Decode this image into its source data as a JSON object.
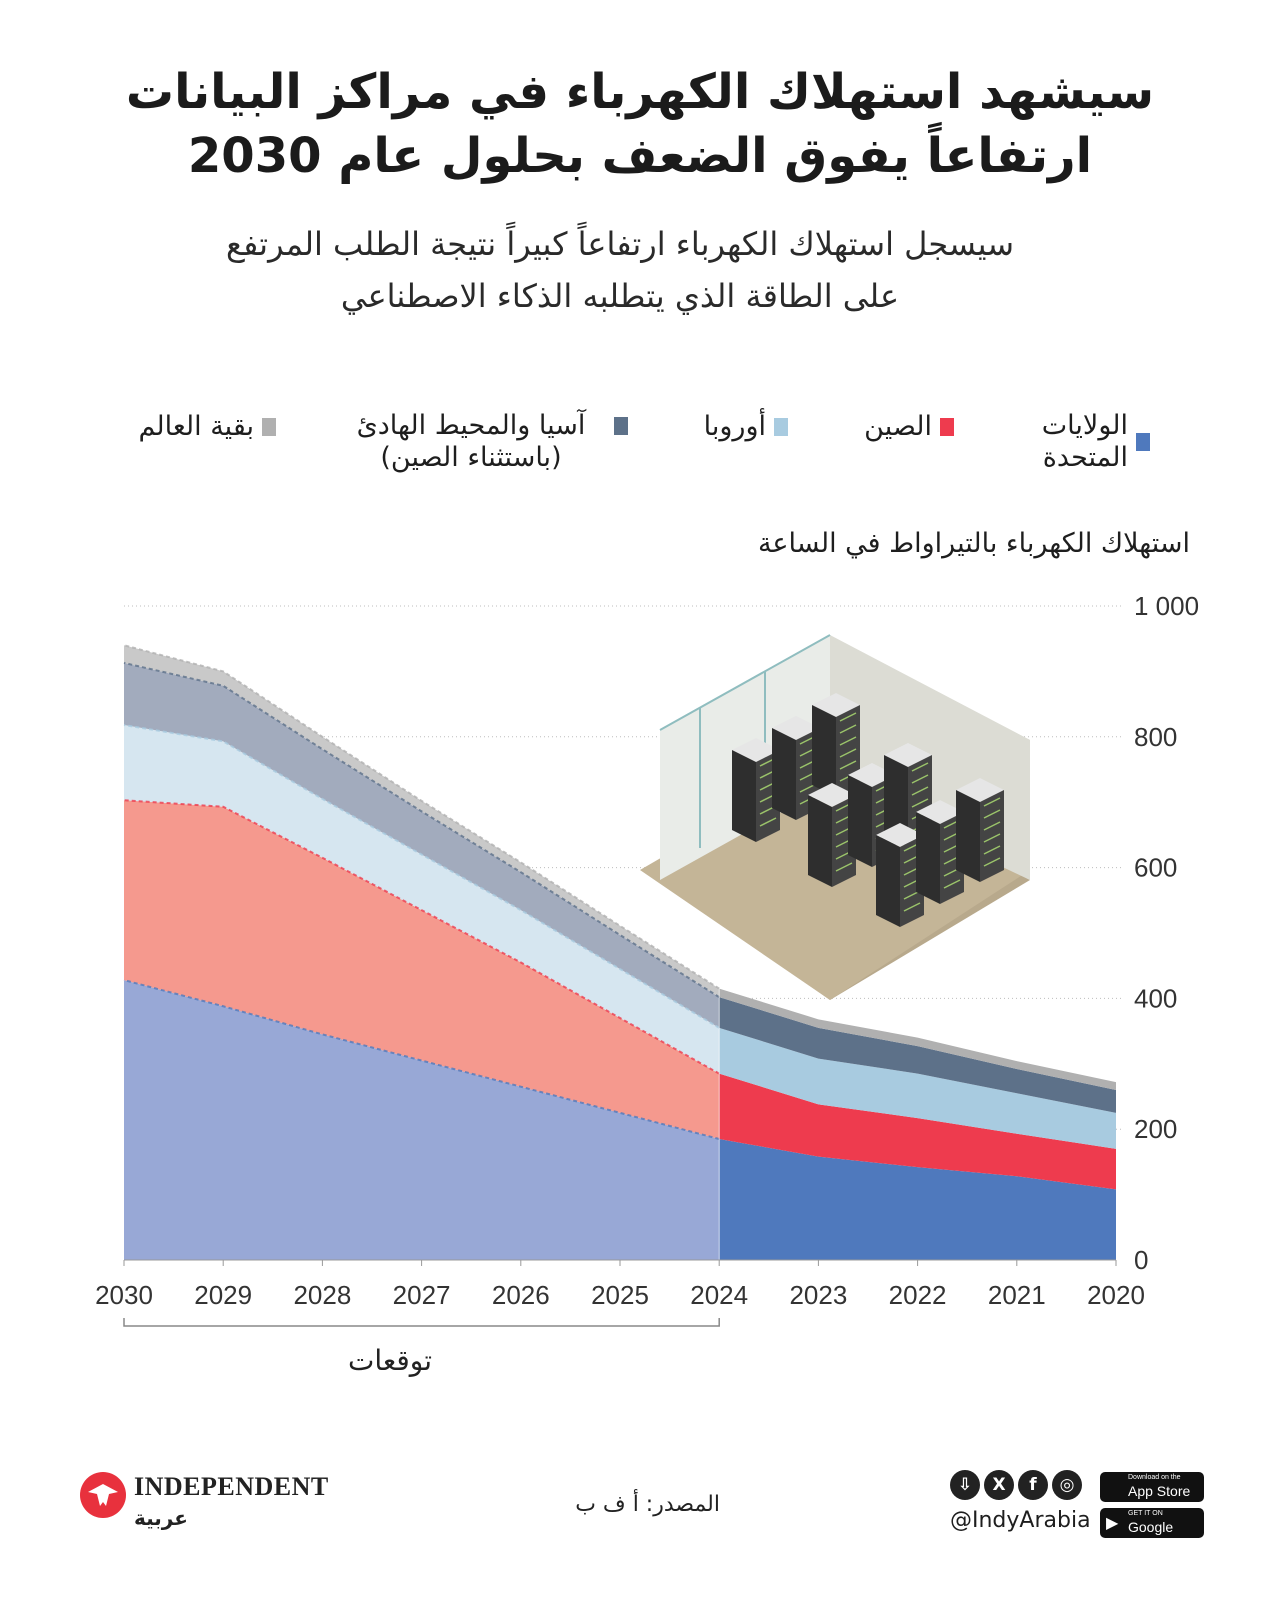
{
  "title": "سيشهد استهلاك الكهرباء في مراكز البيانات ارتفاعاً يفوق الضعف بحلول عام 2030",
  "subtitle": "سيسجل استهلاك الكهرباء ارتفاعاً كبيراً نتيجة الطلب المرتفع على الطاقة الذي يتطلبه الذكاء الاصطناعي",
  "legend": {
    "items": [
      {
        "label": "الولايات المتحدة",
        "color": "#4f79bd"
      },
      {
        "label": "الصين",
        "color": "#ee3b4e"
      },
      {
        "label": "أوروبا",
        "color": "#a8cbe0"
      },
      {
        "label": "آسيا والمحيط الهادئ (باستثناء الصين)",
        "color": "#5d7189"
      },
      {
        "label": "بقية العالم",
        "color": "#b0b0b0"
      }
    ]
  },
  "chart_data": {
    "type": "area",
    "stacked": true,
    "title": "سيشهد استهلاك الكهرباء في مراكز البيانات ارتفاعاً يفوق الضعف بحلول عام 2030",
    "ylabel": "استهلاك الكهرباء بالتيراواط في الساعة",
    "xlabel": "",
    "x_reversed": true,
    "x": [
      2020,
      2021,
      2022,
      2023,
      2024,
      2025,
      2026,
      2027,
      2028,
      2029,
      2030
    ],
    "ylim": [
      0,
      1000
    ],
    "yticks": [
      0,
      200,
      400,
      600,
      800,
      1000
    ],
    "ytick_labels": [
      "0",
      "200",
      "400",
      "600",
      "800",
      "1 000"
    ],
    "grid": true,
    "forecast_from": 2024,
    "forecast_label": "توقعات",
    "series": [
      {
        "name": "الولايات المتحدة",
        "values": [
          108,
          128,
          142,
          158,
          185,
          225,
          265,
          305,
          345,
          388,
          428
        ]
      },
      {
        "name": "الصين",
        "values": [
          62,
          65,
          75,
          80,
          100,
          145,
          190,
          230,
          270,
          305,
          275
        ]
      },
      {
        "name": "أوروبا",
        "values": [
          55,
          62,
          68,
          70,
          70,
          75,
          80,
          85,
          90,
          100,
          115
        ]
      },
      {
        "name": "آسيا والمحيط الهادئ (باستثناء الصين)",
        "values": [
          35,
          37,
          42,
          47,
          47,
          52,
          58,
          66,
          76,
          85,
          95
        ]
      },
      {
        "name": "بقية العالم",
        "values": [
          12,
          12,
          13,
          13,
          13,
          14,
          15,
          16,
          19,
          22,
          27
        ]
      }
    ]
  },
  "footer": {
    "brand_name": "INDEPENDENT",
    "brand_sub": "عربية",
    "source": "المصدر: أ ف ب",
    "handle": "@IndyArabia",
    "social_icons": [
      "download-icon",
      "x-icon",
      "facebook-icon",
      "instagram-icon"
    ],
    "app_store": {
      "small": "Download on the",
      "big": "App Store"
    },
    "google_play": {
      "small": "GET IT ON",
      "big": "Google Play"
    }
  }
}
